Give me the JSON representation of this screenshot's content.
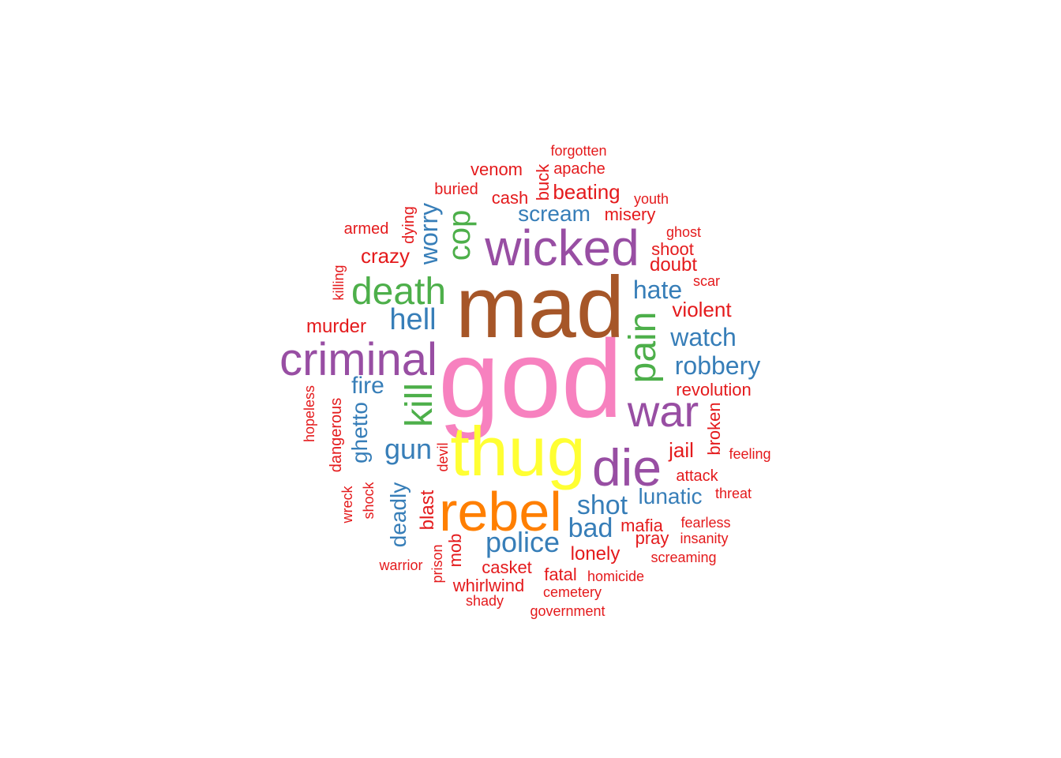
{
  "colors": {
    "red": "#e41a1c",
    "blue": "#377eb8",
    "green": "#4daf4a",
    "purple": "#984ea3",
    "orange": "#ff7f00",
    "yellow": "#ffff33",
    "brown": "#a65628",
    "pink": "#f781bf"
  },
  "words": [
    {
      "text": "god",
      "color": "pink"
    },
    {
      "text": "mad",
      "color": "brown"
    },
    {
      "text": "thug",
      "color": "yellow"
    },
    {
      "text": "rebel",
      "color": "orange"
    },
    {
      "text": "wicked",
      "color": "purple"
    },
    {
      "text": "criminal",
      "color": "purple"
    },
    {
      "text": "die",
      "color": "purple"
    },
    {
      "text": "war",
      "color": "purple"
    },
    {
      "text": "death",
      "color": "green"
    },
    {
      "text": "kill",
      "color": "green"
    },
    {
      "text": "pain",
      "color": "green"
    },
    {
      "text": "cop",
      "color": "green"
    },
    {
      "text": "hell",
      "color": "blue"
    },
    {
      "text": "gun",
      "color": "blue"
    },
    {
      "text": "police",
      "color": "blue"
    },
    {
      "text": "shot",
      "color": "blue"
    },
    {
      "text": "bad",
      "color": "blue"
    },
    {
      "text": "hate",
      "color": "blue"
    },
    {
      "text": "watch",
      "color": "blue"
    },
    {
      "text": "robbery",
      "color": "blue"
    },
    {
      "text": "lunatic",
      "color": "blue"
    },
    {
      "text": "scream",
      "color": "blue"
    },
    {
      "text": "fire",
      "color": "blue"
    },
    {
      "text": "worry",
      "color": "blue"
    },
    {
      "text": "ghetto",
      "color": "blue"
    },
    {
      "text": "deadly",
      "color": "blue"
    },
    {
      "text": "violent",
      "color": "red"
    },
    {
      "text": "crazy",
      "color": "red"
    },
    {
      "text": "murder",
      "color": "red"
    },
    {
      "text": "beating",
      "color": "red"
    },
    {
      "text": "doubt",
      "color": "red"
    },
    {
      "text": "jail",
      "color": "red"
    },
    {
      "text": "lonely",
      "color": "red"
    },
    {
      "text": "mafia",
      "color": "red"
    },
    {
      "text": "pray",
      "color": "red"
    },
    {
      "text": "casket",
      "color": "red"
    },
    {
      "text": "whirlwind",
      "color": "red"
    },
    {
      "text": "fatal",
      "color": "red"
    },
    {
      "text": "blast",
      "color": "red"
    },
    {
      "text": "mob",
      "color": "red"
    },
    {
      "text": "broken",
      "color": "red"
    },
    {
      "text": "revolution",
      "color": "red"
    },
    {
      "text": "cash",
      "color": "red"
    },
    {
      "text": "venom",
      "color": "red"
    },
    {
      "text": "misery",
      "color": "red"
    },
    {
      "text": "shoot",
      "color": "red"
    },
    {
      "text": "attack",
      "color": "red"
    },
    {
      "text": "buck",
      "color": "red"
    },
    {
      "text": "forgotten",
      "color": "red"
    },
    {
      "text": "apache",
      "color": "red"
    },
    {
      "text": "buried",
      "color": "red"
    },
    {
      "text": "youth",
      "color": "red"
    },
    {
      "text": "armed",
      "color": "red"
    },
    {
      "text": "dying",
      "color": "red"
    },
    {
      "text": "ghost",
      "color": "red"
    },
    {
      "text": "scar",
      "color": "red"
    },
    {
      "text": "killing",
      "color": "red"
    },
    {
      "text": "hopeless",
      "color": "red"
    },
    {
      "text": "dangerous",
      "color": "red"
    },
    {
      "text": "devil",
      "color": "red"
    },
    {
      "text": "feeling",
      "color": "red"
    },
    {
      "text": "threat",
      "color": "red"
    },
    {
      "text": "wreck",
      "color": "red"
    },
    {
      "text": "shock",
      "color": "red"
    },
    {
      "text": "fearless",
      "color": "red"
    },
    {
      "text": "insanity",
      "color": "red"
    },
    {
      "text": "warrior",
      "color": "red"
    },
    {
      "text": "prison",
      "color": "red"
    },
    {
      "text": "screaming",
      "color": "red"
    },
    {
      "text": "homicide",
      "color": "red"
    },
    {
      "text": "cemetery",
      "color": "red"
    },
    {
      "text": "shady",
      "color": "red"
    },
    {
      "text": "government",
      "color": "red"
    }
  ]
}
